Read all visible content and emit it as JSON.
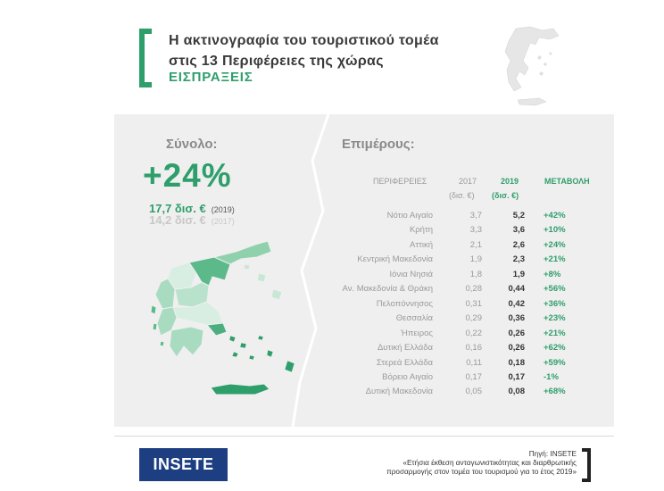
{
  "header": {
    "title_line1": "Η ακτινογραφία του τουριστικού τομέα",
    "title_line2": "στις 13 Περιφέρειες της χώρας",
    "subtitle": "ΕΙΣΠΡΑΞΕΙΣ"
  },
  "summary": {
    "total_label": "Σύνολο:",
    "details_label": "Επιμέρους:",
    "change": "+24%",
    "amount_2019": "17,7 δισ. €",
    "year_2019": "(2019)",
    "amount_2017": "14,2 δισ. €",
    "year_2017": "(2017)"
  },
  "colors": {
    "accent": "#2e9e6b",
    "panel": "#efefef",
    "logo": "#1d3f82"
  },
  "chart_data": {
    "type": "table",
    "columns": {
      "region": "ΠΕΡΙΦΕΡΕΙΕΣ",
      "y2017": "2017",
      "y2019": "2019",
      "change": "ΜΕΤΑΒΟΛΗ",
      "unit_2017": "(δισ. €)",
      "unit_2019": "(δισ. €)"
    },
    "rows": [
      {
        "region": "Νότιο Αιγαίο",
        "y2017": "3,7",
        "y2019": "5,2",
        "change": "+42%"
      },
      {
        "region": "Κρήτη",
        "y2017": "3,3",
        "y2019": "3,6",
        "change": "+10%"
      },
      {
        "region": "Αττική",
        "y2017": "2,1",
        "y2019": "2,6",
        "change": "+24%"
      },
      {
        "region": "Κεντρική Μακεδονία",
        "y2017": "1,9",
        "y2019": "2,3",
        "change": "+21%"
      },
      {
        "region": "Ιόνια Νησιά",
        "y2017": "1,8",
        "y2019": "1,9",
        "change": "+8%"
      },
      {
        "region": "Αν. Μακεδονία & Θράκη",
        "y2017": "0,28",
        "y2019": "0,44",
        "change": "+56%"
      },
      {
        "region": "Πελοπόννησος",
        "y2017": "0,31",
        "y2019": "0,42",
        "change": "+36%"
      },
      {
        "region": "Θεσσαλία",
        "y2017": "0,29",
        "y2019": "0,36",
        "change": "+23%"
      },
      {
        "region": "Ήπειρος",
        "y2017": "0,22",
        "y2019": "0,26",
        "change": "+21%"
      },
      {
        "region": "Δυτική Ελλάδα",
        "y2017": "0,16",
        "y2019": "0,26",
        "change": "+62%"
      },
      {
        "region": "Στερεά Ελλάδα",
        "y2017": "0,11",
        "y2019": "0,18",
        "change": "+59%"
      },
      {
        "region": "Βόρειο Αιγαίο",
        "y2017": "0,17",
        "y2019": "0,17",
        "change": "-1%"
      },
      {
        "region": "Δυτική Μακεδονία",
        "y2017": "0,05",
        "y2019": "0,08",
        "change": "+68%"
      }
    ]
  },
  "footer": {
    "logo_text": "INSETE",
    "source_line1": "Πηγή: INSETE",
    "source_line2": "«Ετήσια έκθεση ανταγωνιστικότητας και διαρθρωτικής",
    "source_line3": "προσαρμογής στον τομέα του τουρισμού για το έτος 2019»"
  }
}
